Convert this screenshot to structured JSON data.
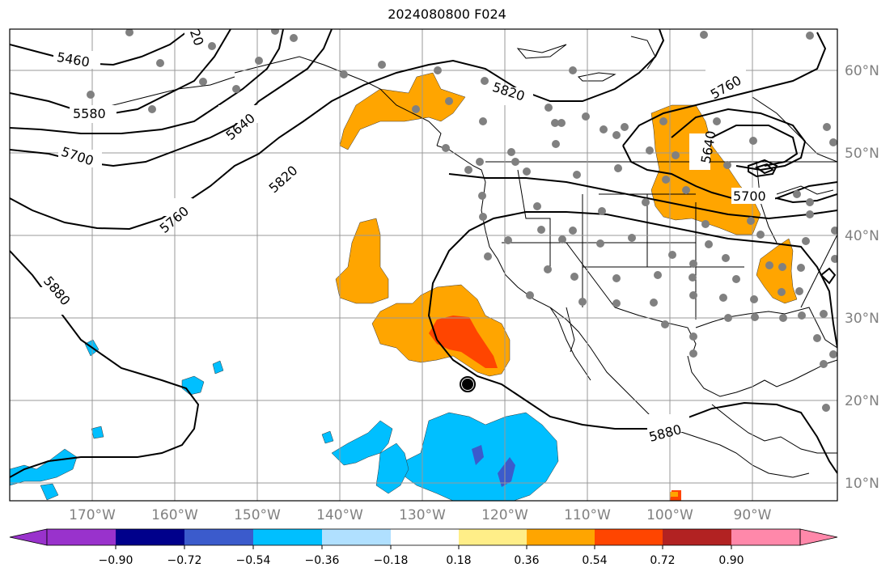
{
  "title": "2024080800 F024",
  "map": {
    "lat_labels": [
      "60°N",
      "50°N",
      "40°N",
      "30°N",
      "20°N",
      "10°N"
    ],
    "lon_labels": [
      "170°W",
      "160°W",
      "150°W",
      "140°W",
      "130°W",
      "120°W",
      "110°W",
      "100°W",
      "90°W"
    ],
    "contour_labels": [
      "5460",
      "5580",
      "5640",
      "5700",
      "5760",
      "5820",
      "5820",
      "5880",
      "5880",
      "5760",
      "5640",
      "5700",
      "20"
    ],
    "colors": {
      "positive_1": "#ffa500",
      "positive_2": "#ff4500",
      "negative_1": "#00bfff",
      "negative_2": "#3b5bcc",
      "station": "#808080"
    }
  },
  "colorbar": {
    "colors": [
      "#9932cc",
      "#00008b",
      "#3b5bcc",
      "#00bfff",
      "#b0e0ff",
      "#ffffff",
      "#ffee88",
      "#ffa500",
      "#ff4500",
      "#b22222",
      "#ff88aa"
    ],
    "tick_labels": [
      "−0.90",
      "−0.72",
      "−0.54",
      "−0.36",
      "−0.18",
      "0.18",
      "0.36",
      "0.54",
      "0.72",
      "0.90"
    ]
  }
}
